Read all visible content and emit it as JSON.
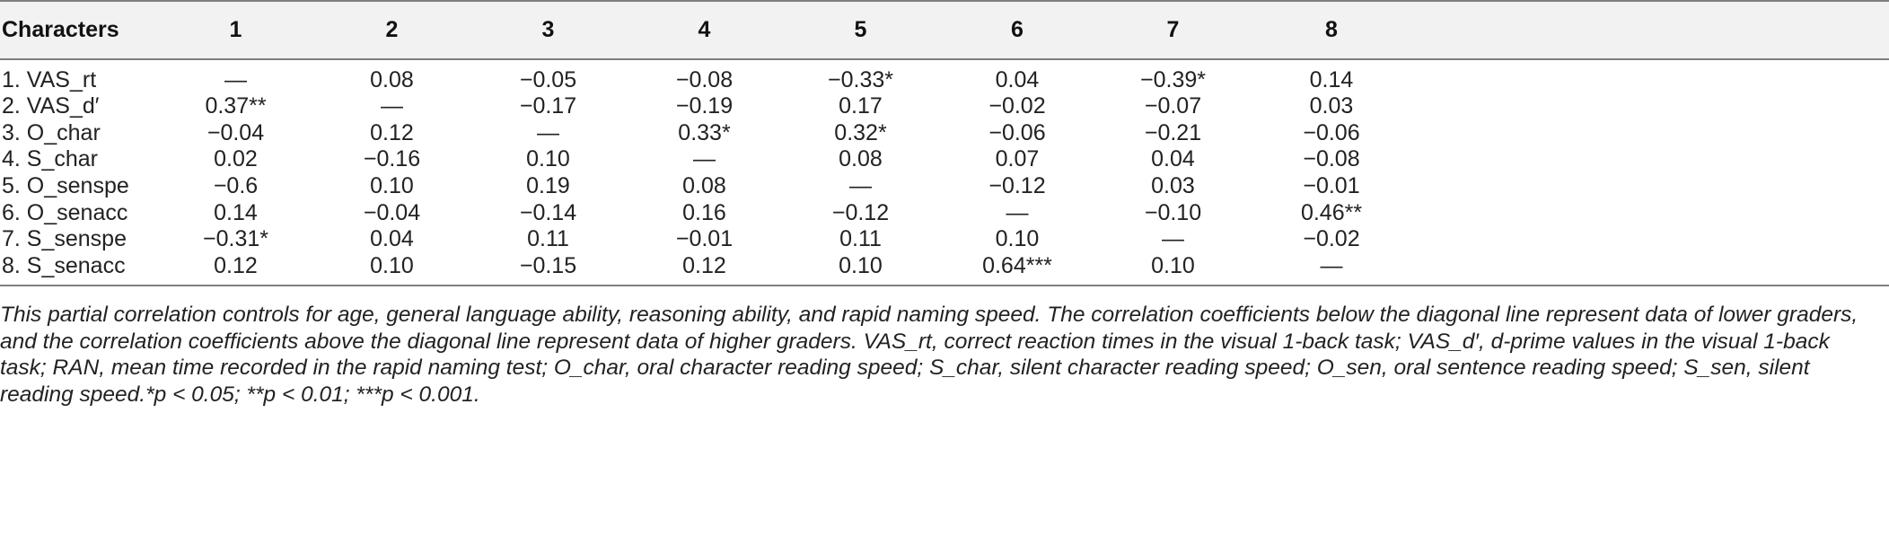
{
  "table": {
    "headers": [
      "Characters",
      "1",
      "2",
      "3",
      "4",
      "5",
      "6",
      "7",
      "8"
    ],
    "rows": [
      [
        "1. VAS_rt",
        "—",
        "0.08",
        "−0.05",
        "−0.08",
        "−0.33*",
        "0.04",
        "−0.39*",
        "0.14"
      ],
      [
        "2. VAS_d′",
        "0.37**",
        "—",
        "−0.17",
        "−0.19",
        "0.17",
        "−0.02",
        "−0.07",
        "0.03"
      ],
      [
        "3. O_char",
        "−0.04",
        "0.12",
        "—",
        "0.33*",
        "0.32*",
        "−0.06",
        "−0.21",
        "−0.06"
      ],
      [
        "4. S_char",
        "0.02",
        "−0.16",
        "0.10",
        "—",
        "0.08",
        "0.07",
        "0.04",
        "−0.08"
      ],
      [
        "5. O_senspe",
        "−0.6",
        "0.10",
        "0.19",
        "0.08",
        "—",
        "−0.12",
        "0.03",
        "−0.01"
      ],
      [
        "6. O_senacc",
        "0.14",
        "−0.04",
        "−0.14",
        "0.16",
        "−0.12",
        "—",
        "−0.10",
        "0.46**"
      ],
      [
        "7. S_senspe",
        "−0.31*",
        "0.04",
        "0.11",
        "−0.01",
        "0.11",
        "0.10",
        "—",
        "−0.02"
      ],
      [
        "8. S_senacc",
        "0.12",
        "0.10",
        "−0.15",
        "0.12",
        "0.10",
        "0.64***",
        "0.10",
        "—"
      ]
    ]
  },
  "note": "This partial correlation controls for age, general language ability, reasoning ability, and rapid naming speed. The correlation coefficients below the diagonal line represent data of lower graders, and the correlation coefficients above the diagonal line represent data of higher graders. VAS_rt, correct reaction times in the visual 1-back task; VAS_d′, d-prime values in the visual 1-back task; RAN, mean time recorded in the rapid naming test; O_char, oral character reading speed; S_char, silent character reading speed; O_sen, oral sentence reading speed; S_sen, silent reading speed.*p < 0.05; **p < 0.01; ***p < 0.001."
}
